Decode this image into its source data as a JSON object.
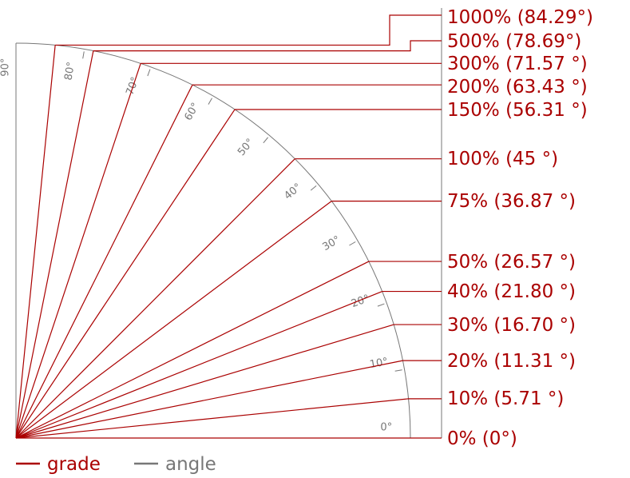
{
  "colors": {
    "grade": "#aa0000",
    "angle": "#777777"
  },
  "grades": [
    {
      "percent": 0,
      "angle": 0,
      "label": "0% (0°)"
    },
    {
      "percent": 10,
      "angle": 5.71,
      "label": "10% (5.71 °)"
    },
    {
      "percent": 20,
      "angle": 11.31,
      "label": "20% (11.31 °)"
    },
    {
      "percent": 30,
      "angle": 16.7,
      "label": "30% (16.70 °)"
    },
    {
      "percent": 40,
      "angle": 21.8,
      "label": "40% (21.80 °)"
    },
    {
      "percent": 50,
      "angle": 26.57,
      "label": "50% (26.57 °)"
    },
    {
      "percent": 75,
      "angle": 36.87,
      "label": "75% (36.87 °)"
    },
    {
      "percent": 100,
      "angle": 45,
      "label": "100% (45 °)"
    },
    {
      "percent": 150,
      "angle": 56.31,
      "label": "150% (56.31 °)"
    },
    {
      "percent": 200,
      "angle": 63.43,
      "label": "200% (63.43 °)"
    },
    {
      "percent": 300,
      "angle": 71.57,
      "label": "300% (71.57 °)"
    },
    {
      "percent": 500,
      "angle": 78.69,
      "label": "500% (78.69°)"
    },
    {
      "percent": 1000,
      "angle": 84.29,
      "label": "1000% (84.29°)"
    }
  ],
  "angle_ticks": [
    "0°",
    "10°",
    "20°",
    "30°",
    "40°",
    "50°",
    "60°",
    "70°",
    "80°",
    "90°"
  ],
  "legend": {
    "grade": "grade",
    "angle": "angle"
  }
}
